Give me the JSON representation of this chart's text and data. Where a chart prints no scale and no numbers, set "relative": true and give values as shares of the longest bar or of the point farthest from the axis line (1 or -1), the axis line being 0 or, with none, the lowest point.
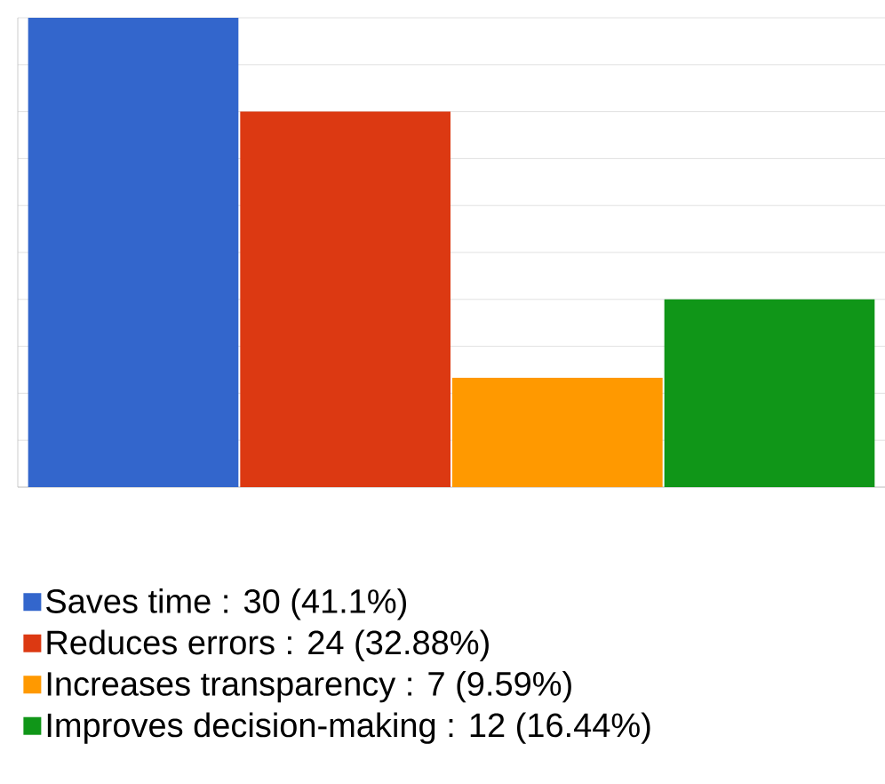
{
  "chart_data": {
    "type": "bar",
    "categories": [
      null
    ],
    "relative": true,
    "series": [
      {
        "name": "Saves time : 30 (41.1%)",
        "color": "#3366cc",
        "values": [
          1
        ]
      },
      {
        "name": "Reduces errors : 24 (32.88%)",
        "color": "#dc3912",
        "values": [
          0.8
        ]
      },
      {
        "name": "Increases transparency : 7 (9.59%)",
        "color": "#ff9900",
        "values": [
          0.233
        ]
      },
      {
        "name": "Improves decision-making : 12 (16.44%)",
        "color": "#109618",
        "values": [
          0.4
        ]
      }
    ],
    "grid": "y",
    "legend": "bottom"
  }
}
